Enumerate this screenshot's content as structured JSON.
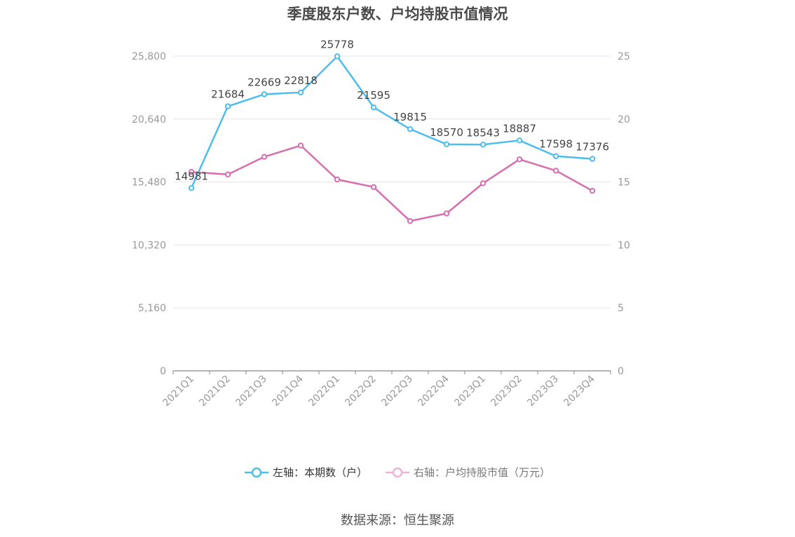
{
  "title": "季度股东户数、户均持股市值情况",
  "source": "数据来源：恒生聚源",
  "colors": {
    "series0": "#4dbdee",
    "series1": "#d66fb1",
    "grid": "#e3e6ef",
    "axis": "#999999"
  },
  "chart_data": {
    "type": "line",
    "title": "季度股东户数、户均持股市值情况",
    "categories": [
      "2021Q1",
      "2021Q2",
      "2021Q3",
      "2021Q4",
      "2022Q1",
      "2022Q2",
      "2022Q3",
      "2022Q4",
      "2023Q1",
      "2023Q2",
      "2023Q3",
      "2023Q4"
    ],
    "y_left": {
      "ticks": [
        "0",
        "5,160",
        "10,320",
        "15,480",
        "20,640",
        "25,800"
      ],
      "range": [
        0,
        25800
      ]
    },
    "y_right": {
      "ticks": [
        "0",
        "5",
        "10",
        "15",
        "20",
        "25"
      ],
      "range": [
        0,
        25
      ]
    },
    "grid": true,
    "legend_position": "bottom",
    "series": [
      {
        "name": "左轴：本期数（户）",
        "axis": "left",
        "color": "#4dbdee",
        "values": [
          14981,
          21684,
          22669,
          22818,
          25778,
          21595,
          19815,
          18570,
          18543,
          18887,
          17598,
          17376
        ],
        "labels": [
          "14981",
          "21684",
          "22669",
          "22818",
          "25778",
          "21595",
          "19815",
          "18570",
          "18543",
          "18887",
          "17598",
          "17376"
        ]
      },
      {
        "name": "右轴：户均持股市值（万元）",
        "axis": "right",
        "color": "#d66fb1",
        "values": [
          15.8,
          15.6,
          17.0,
          17.9,
          15.2,
          14.6,
          11.9,
          12.5,
          14.9,
          16.8,
          15.9,
          14.3
        ]
      }
    ]
  }
}
